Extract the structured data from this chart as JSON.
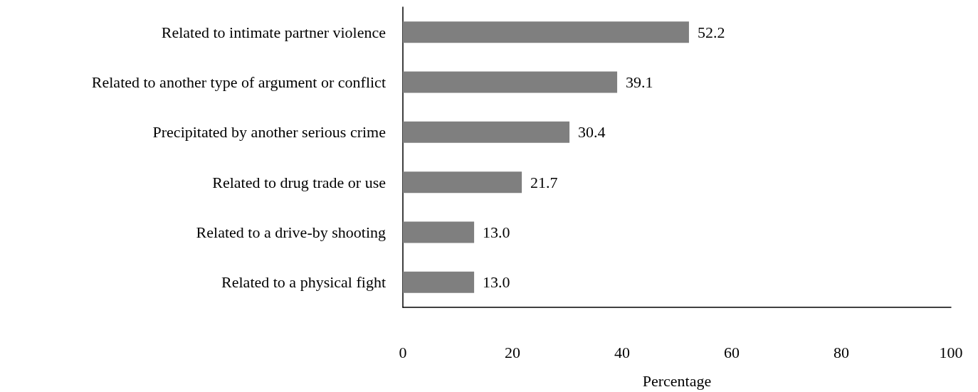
{
  "chart_data": {
    "type": "bar",
    "orientation": "horizontal",
    "xlabel": "Percentage",
    "categories": [
      "Related to intimate partner violence",
      "Related to another type of argument or conflict",
      "Precipitated by another serious crime",
      "Related to drug trade or use",
      "Related to a drive-by shooting",
      "Related to a physical fight"
    ],
    "values": [
      52.2,
      39.1,
      30.4,
      21.7,
      13.0,
      13.0
    ],
    "value_labels": [
      "52.2",
      "39.1",
      "30.4",
      "21.7",
      "13.0",
      "13.0"
    ],
    "color": "#7f7f7f",
    "xlim": [
      0,
      100
    ],
    "xticks": [
      0,
      20,
      40,
      60,
      80,
      100
    ],
    "grid": false
  }
}
